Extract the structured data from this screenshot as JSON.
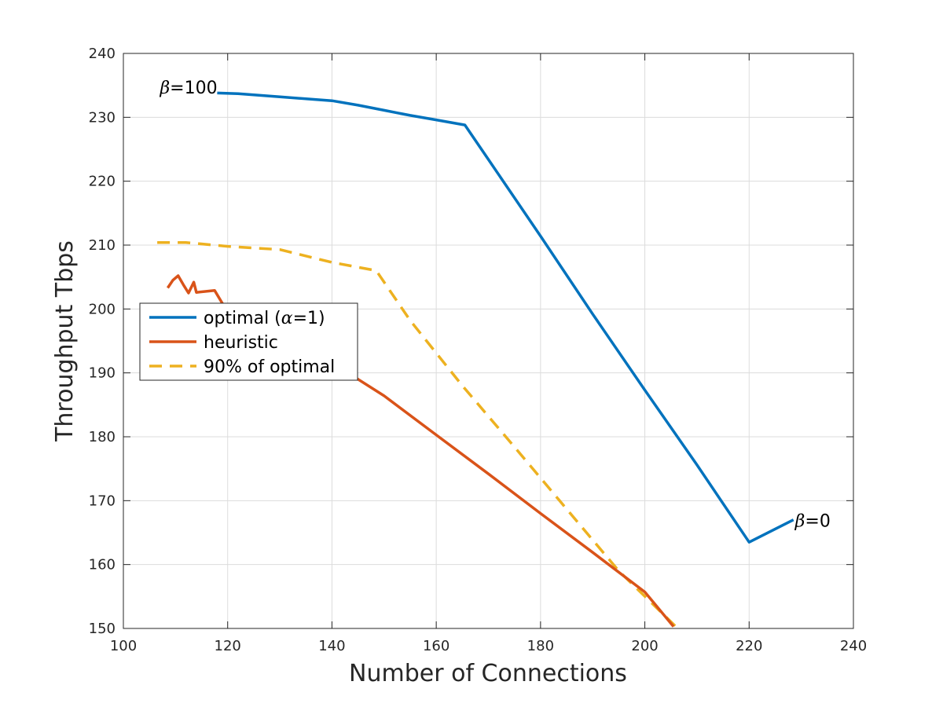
{
  "chart_data": {
    "type": "line",
    "title": "",
    "xlabel": "Number of Connections",
    "ylabel": "Throughput Tbps",
    "xlim": [
      100,
      240
    ],
    "ylim": [
      150,
      240
    ],
    "xticks": [
      100,
      120,
      140,
      160,
      180,
      200,
      220,
      240
    ],
    "yticks": [
      150,
      160,
      170,
      180,
      190,
      200,
      210,
      220,
      230,
      240
    ],
    "grid": true,
    "legend_position": "left",
    "series": [
      {
        "name_parts": [
          "optimal (",
          "α",
          "=1)"
        ],
        "color": "#0072BD",
        "style": "solid",
        "x": [
          118,
          122,
          130,
          140,
          145,
          150,
          155,
          160,
          165.5,
          170,
          180,
          190,
          200,
          210,
          220,
          228.5
        ],
        "y": [
          233.8,
          233.7,
          233.2,
          232.6,
          231.9,
          231.1,
          230.3,
          229.6,
          228.8,
          223.4,
          211.4,
          199.2,
          187.3,
          175.6,
          163.5,
          167.0
        ]
      },
      {
        "name": "heuristic",
        "color": "#D95319",
        "style": "solid",
        "x": [
          108.5,
          109.5,
          110.5,
          111.5,
          112.5,
          113.5,
          114,
          117.5,
          120,
          125,
          130,
          140,
          150,
          160,
          170,
          180,
          190,
          200,
          205.5
        ],
        "y": [
          203.3,
          204.5,
          205.2,
          203.8,
          202.5,
          204.2,
          202.6,
          202.9,
          199.5,
          197.5,
          195.5,
          191.6,
          186.4,
          180.3,
          174.2,
          168.0,
          161.9,
          155.7,
          150.3
        ]
      },
      {
        "name": "90% of optimal",
        "color": "#EDB120",
        "style": "dashed",
        "x": [
          106.5,
          112,
          120,
          130,
          140,
          148.5,
          155,
          165,
          175,
          185,
          195,
          205.8
        ],
        "y": [
          210.4,
          210.4,
          209.8,
          209.3,
          207.3,
          206.0,
          198.2,
          188.0,
          178.4,
          168.7,
          159.0,
          150.4
        ]
      }
    ],
    "annotations": [
      {
        "symbol": "β",
        "text": "=100",
        "x": 107,
        "y": 234.7
      },
      {
        "symbol": "β",
        "text": "=0",
        "x": 228.8,
        "y": 166.9
      }
    ]
  }
}
